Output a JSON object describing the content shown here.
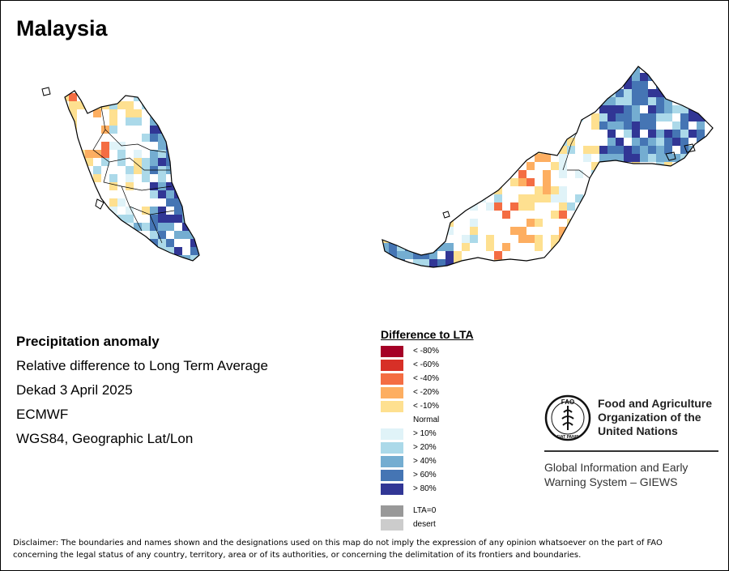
{
  "title": "Malaysia",
  "info": {
    "heading": "Precipitation anomaly",
    "line1": "Relative difference to Long Term Average",
    "line2": "Dekad 3 April 2025",
    "line3": "ECMWF",
    "line4": "WGS84, Geographic Lat/Lon"
  },
  "legend": {
    "title": "Difference to LTA",
    "items": [
      {
        "label": "< -80%",
        "color": "#a50026"
      },
      {
        "label": "< -60%",
        "color": "#d73027"
      },
      {
        "label": "< -40%",
        "color": "#f46d43"
      },
      {
        "label": "< -20%",
        "color": "#fdae61"
      },
      {
        "label": "< -10%",
        "color": "#fee090"
      }
    ],
    "normal": "Normal",
    "wet_items": [
      {
        "label": "> 10%",
        "color": "#e0f3f8"
      },
      {
        "label": "> 20%",
        "color": "#abd9e9"
      },
      {
        "label": "> 40%",
        "color": "#74add1"
      },
      {
        "label": "> 60%",
        "color": "#4575b4"
      },
      {
        "label": "> 80%",
        "color": "#313695"
      }
    ],
    "extra_items": [
      {
        "label": "LTA=0",
        "color": "#999999"
      },
      {
        "label": "desert",
        "color": "#cccccc"
      }
    ]
  },
  "fao": {
    "name_line1": "Food and Agriculture",
    "name_line2": "Organization of the",
    "name_line3": "United Nations",
    "giews_line1": "Global Information and Early",
    "giews_line2": "Warning System – GIEWS",
    "logo_text": "FIAT PANIS",
    "logo_letters": "FAO"
  },
  "disclaimer_line1": "Disclaimer: The boundaries and names shown and the designations used on this map do not imply the expression of any opinion whatsoever on the part of FAO",
  "disclaimer_line2": "concerning the legal status of any country, territory, area or of its authorities, or concerning the delimitation of its frontiers and boundaries."
}
